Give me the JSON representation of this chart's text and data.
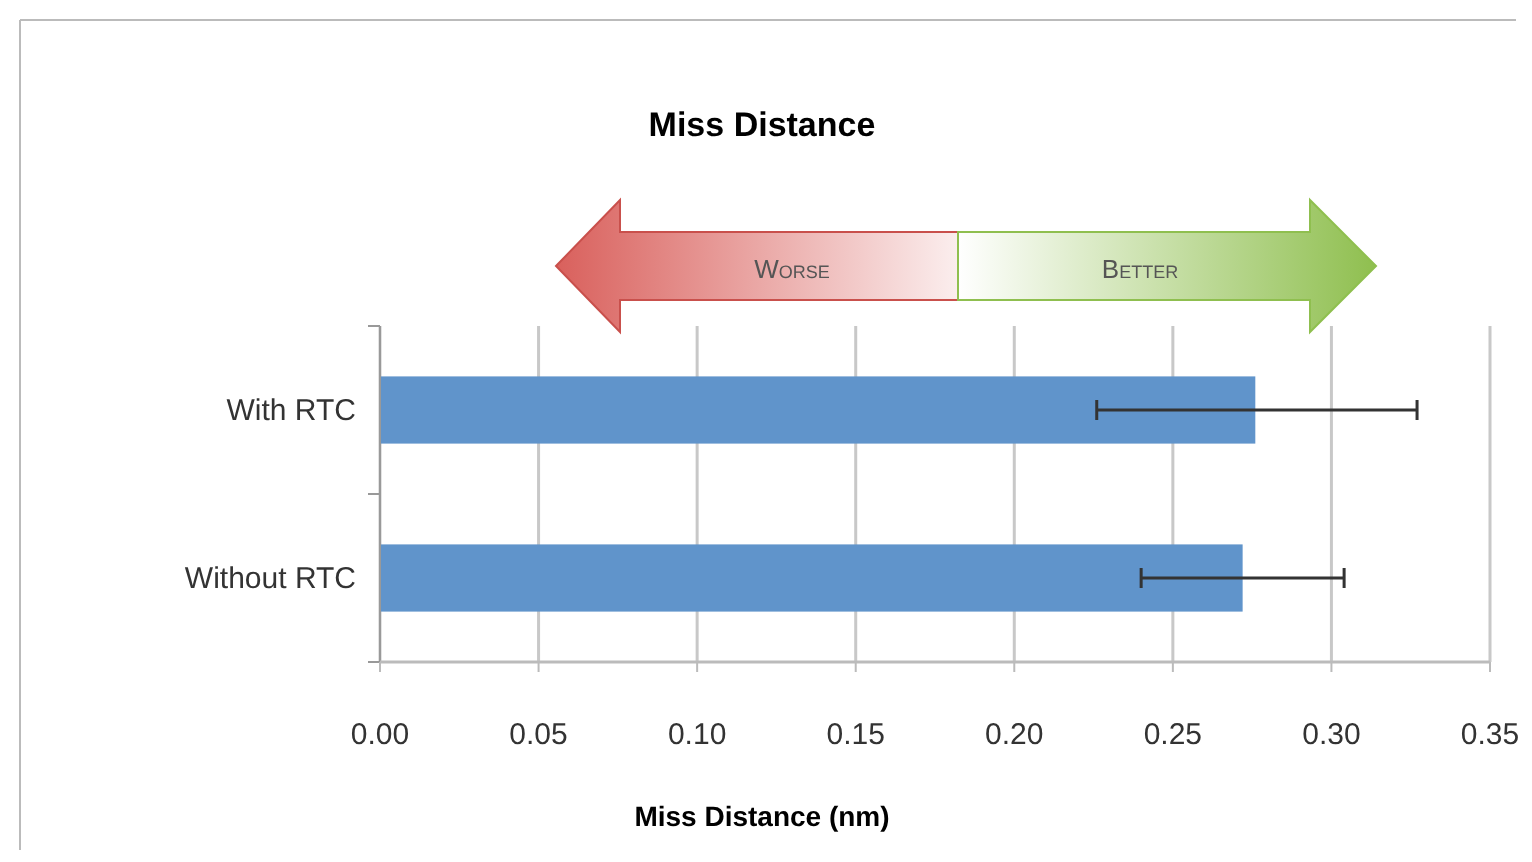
{
  "chart_data": {
    "type": "bar",
    "orientation": "horizontal",
    "title": "Miss Distance",
    "xlabel": "Miss Distance (nm)",
    "categories": [
      "With RTC",
      "Without RTC"
    ],
    "values": [
      0.276,
      0.272
    ],
    "errors": [
      [
        0.226,
        0.327
      ],
      [
        0.24,
        0.304
      ]
    ],
    "color": "#6094cb",
    "xlim": [
      0,
      0.35
    ],
    "xticks": [
      {
        "value": 0,
        "label": "0.00"
      },
      {
        "value": 0.05,
        "label": "0.05"
      },
      {
        "value": 0.1,
        "label": "0.10"
      },
      {
        "value": 0.15,
        "label": "0.15"
      },
      {
        "value": 0.2,
        "label": "0.20"
      },
      {
        "value": 0.25,
        "label": "0.25"
      },
      {
        "value": 0.3,
        "label": "0.30"
      },
      {
        "value": 0.35,
        "label": "0.35"
      }
    ],
    "grid": "x",
    "annotations": [
      "Worse",
      "Better"
    ]
  }
}
